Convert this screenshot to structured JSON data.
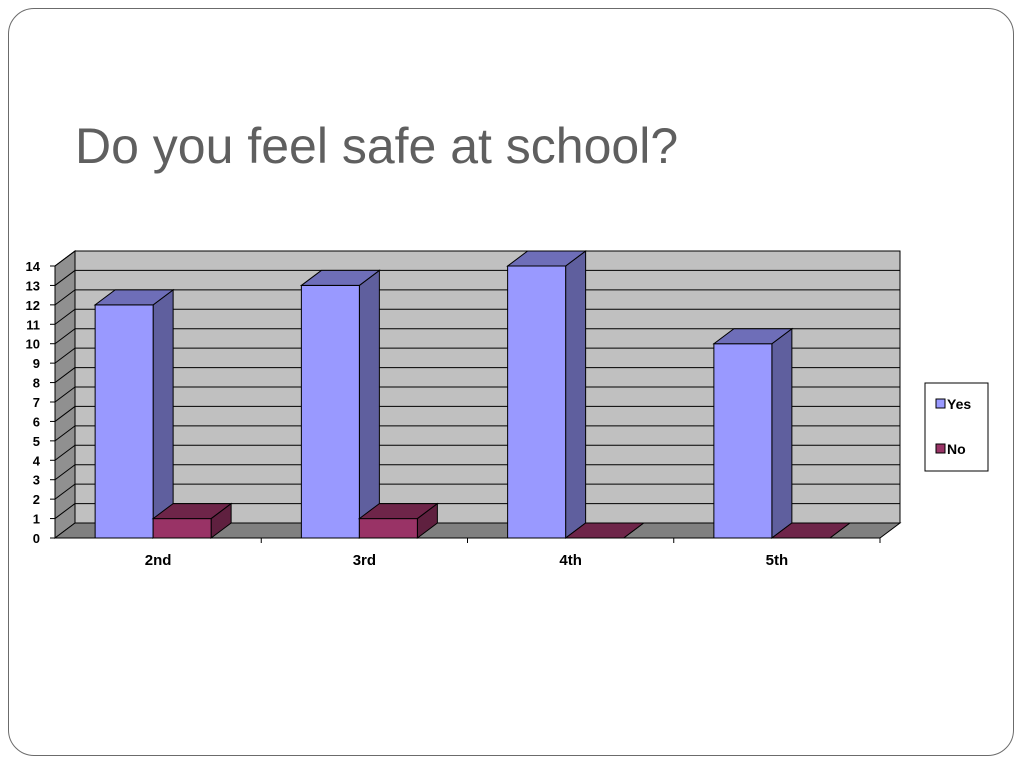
{
  "slide": {
    "title": "Do you feel safe at school?"
  },
  "chart_data": {
    "type": "bar",
    "style": "3d-clustered",
    "title": "",
    "xlabel": "",
    "ylabel": "",
    "categories": [
      "2nd",
      "3rd",
      "4th",
      "5th"
    ],
    "series": [
      {
        "name": "Yes",
        "values": [
          12,
          13,
          14,
          10
        ],
        "color": "#9999ff"
      },
      {
        "name": "No",
        "values": [
          1,
          1,
          0,
          0
        ],
        "color": "#993366"
      }
    ],
    "ylim": [
      0,
      14
    ],
    "yticks": [
      0,
      1,
      2,
      3,
      4,
      5,
      6,
      7,
      8,
      9,
      10,
      11,
      12,
      13,
      14
    ],
    "grid": true,
    "legend_position": "right",
    "wall_color": "#c0c0c0",
    "floor_color": "#808080"
  }
}
